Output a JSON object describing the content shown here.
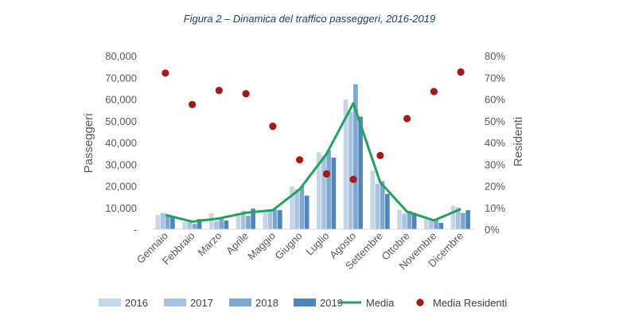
{
  "chart_data": {
    "type": "bar",
    "title": "Figura 2 – Dinamica del traffico passeggeri, 2016-2019",
    "categories": [
      "Gennaio",
      "Febbraio",
      "Marzo",
      "Aprile",
      "Maggio",
      "Giugno",
      "Luglio",
      "Agosto",
      "Settembre",
      "Ottobre",
      "Novembre",
      "Dicembre"
    ],
    "series": [
      {
        "name": "2016",
        "kind": "bar",
        "axis": "left",
        "color": "#c5d6ea",
        "values": [
          6500,
          3300,
          7300,
          6200,
          8200,
          19800,
          35500,
          59800,
          27000,
          9000,
          4800,
          10700
        ]
      },
      {
        "name": "2017",
        "kind": "bar",
        "axis": "left",
        "color": "#a8c3e0",
        "values": [
          7500,
          3600,
          3600,
          8500,
          9000,
          18500,
          33800,
          54000,
          21000,
          7200,
          4500,
          10000
        ]
      },
      {
        "name": "2018",
        "kind": "bar",
        "axis": "left",
        "color": "#7ba7d1",
        "values": [
          6800,
          2500,
          5300,
          6200,
          9200,
          19800,
          36500,
          66800,
          22200,
          8400,
          4200,
          7500
        ]
      },
      {
        "name": "2019",
        "kind": "bar",
        "axis": "left",
        "color": "#4f84be",
        "values": [
          5600,
          4700,
          4000,
          9500,
          8800,
          15500,
          33000,
          51900,
          16300,
          7600,
          2900,
          8800
        ]
      },
      {
        "name": "Media",
        "kind": "line",
        "axis": "left",
        "color": "#23a15e",
        "values": [
          6600,
          3500,
          5000,
          7600,
          8800,
          18400,
          34700,
          58100,
          21600,
          8100,
          4100,
          9300
        ]
      },
      {
        "name": "Media Residenti",
        "kind": "dot",
        "axis": "right",
        "color": "#a31a1a",
        "values": [
          0.72,
          0.575,
          0.64,
          0.625,
          0.475,
          0.32,
          0.255,
          0.23,
          0.34,
          0.51,
          0.635,
          0.725
        ]
      }
    ],
    "ylabel": "Passeggeri",
    "y2label": "Residenti",
    "ylim": [
      0,
      80000
    ],
    "y2lim": [
      0,
      0.8
    ],
    "yticks": [
      0,
      10000,
      20000,
      30000,
      40000,
      50000,
      60000,
      70000,
      80000
    ],
    "ytick_labels": [
      "-",
      "10,000",
      "20,000",
      "30,000",
      "40,000",
      "50,000",
      "60,000",
      "70,000",
      "80,000"
    ],
    "y2ticks": [
      0,
      0.1,
      0.2,
      0.3,
      0.4,
      0.5,
      0.6,
      0.7,
      0.8
    ],
    "y2tick_labels": [
      "0%",
      "10%",
      "20%",
      "30%",
      "40%",
      "50%",
      "60%",
      "70%",
      "80%"
    ],
    "grid": false,
    "legend": "bottom"
  }
}
